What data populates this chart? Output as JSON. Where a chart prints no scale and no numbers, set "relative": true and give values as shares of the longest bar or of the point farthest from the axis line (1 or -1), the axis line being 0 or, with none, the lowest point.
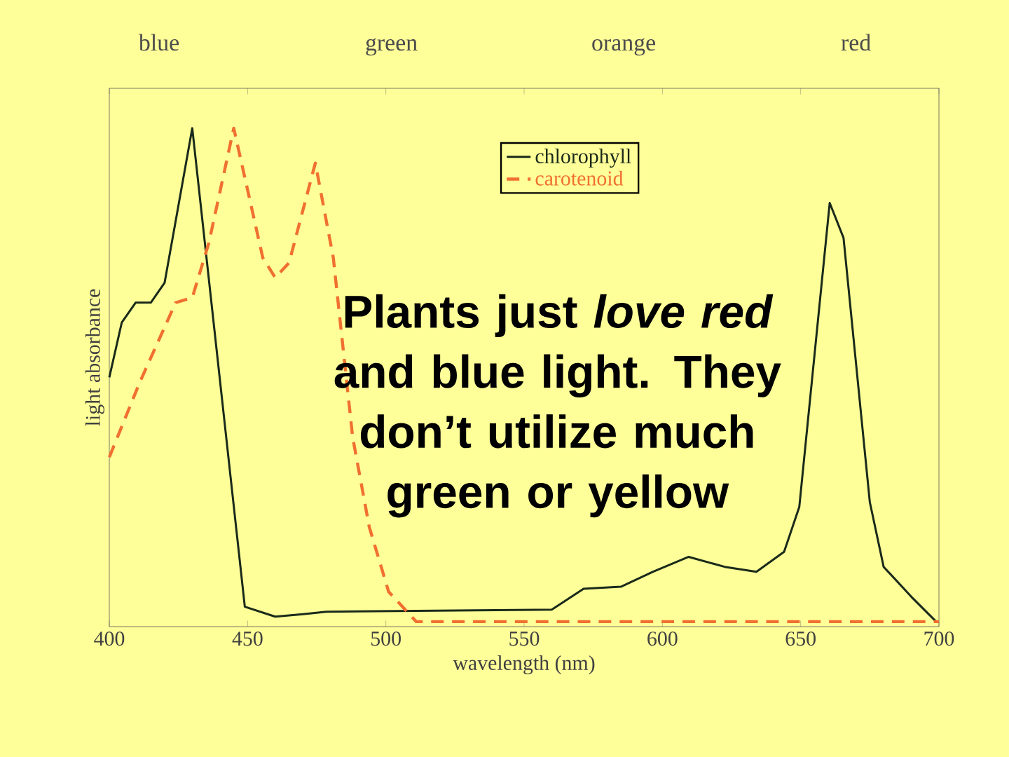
{
  "chart_data": {
    "type": "line",
    "xlabel": "wavelength (nm)",
    "ylabel": "light absorbance",
    "relative": true,
    "xlim": [
      400,
      700
    ],
    "xticks": [
      400,
      450,
      500,
      550,
      600,
      650,
      700
    ],
    "legend": "top",
    "grid": false,
    "annotations": [
      "Plants just *love red* and blue light. They don’t utilize much green or yellow",
      "blue",
      "green",
      "orange",
      "red"
    ],
    "series": [
      {
        "name": "chlorophyll",
        "color": "#1a2a1a",
        "line_style": "solid",
        "x": [
          400,
          404.5,
          409.5,
          415,
          420,
          430,
          449,
          460,
          470,
          478.5,
          560,
          571.5,
          585,
          596.5,
          609.5,
          622.5,
          634,
          644,
          649.5,
          660.5,
          665.5,
          675,
          680,
          690,
          699
        ],
        "values": [
          0.5,
          0.61,
          0.65,
          0.65,
          0.69,
          1.0,
          0.04,
          0.02,
          0.025,
          0.03,
          0.034,
          0.076,
          0.08,
          0.11,
          0.14,
          0.12,
          0.11,
          0.15,
          0.24,
          0.85,
          0.78,
          0.25,
          0.12,
          0.06,
          0.01
        ]
      },
      {
        "name": "carotenoid",
        "color": "#f07030",
        "line_style": "dashed",
        "x": [
          400,
          411,
          424,
          430,
          436,
          445,
          455.5,
          460,
          465,
          474.5,
          481,
          488,
          494,
          501,
          511,
          530,
          600,
          700
        ],
        "values": [
          0.34,
          0.49,
          0.65,
          0.66,
          0.77,
          1.0,
          0.74,
          0.7,
          0.73,
          0.93,
          0.74,
          0.38,
          0.2,
          0.07,
          0.01,
          0.01,
          0.01,
          0.01
        ]
      }
    ]
  }
}
